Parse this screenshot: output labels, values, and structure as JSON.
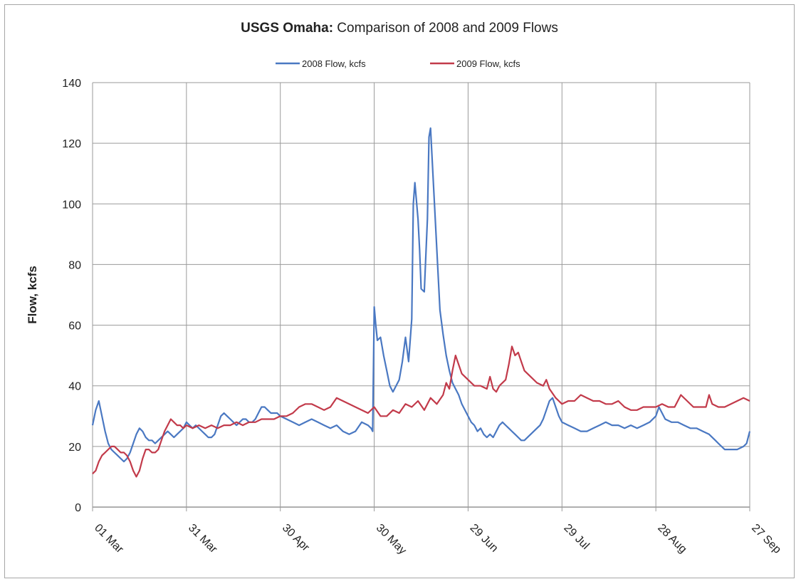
{
  "chart_data": {
    "type": "line",
    "title_bold": "USGS Omaha:",
    "title_rest": " Comparison of 2008 and 2009 Flows",
    "ylabel": "Flow, kcfs",
    "xlabel": "",
    "ylim": [
      0,
      140
    ],
    "yticks": [
      0,
      20,
      40,
      60,
      80,
      100,
      120,
      140
    ],
    "xlim": [
      0,
      210
    ],
    "xticks": [
      {
        "day": 0,
        "label": "01 Mar"
      },
      {
        "day": 30,
        "label": "31 Mar"
      },
      {
        "day": 60,
        "label": "30 Apr"
      },
      {
        "day": 90,
        "label": "30 May"
      },
      {
        "day": 120,
        "label": "29 Jun"
      },
      {
        "day": 150,
        "label": "29 Jul"
      },
      {
        "day": 180,
        "label": "28 Aug"
      },
      {
        "day": 210,
        "label": "27 Sep"
      }
    ],
    "grid": true,
    "legend_position": "top",
    "series": [
      {
        "name": "2008 Flow, kcfs",
        "color": "#4a78c2",
        "points": [
          [
            0,
            27
          ],
          [
            1,
            32
          ],
          [
            2,
            35
          ],
          [
            3,
            30
          ],
          [
            4,
            25
          ],
          [
            5,
            21
          ],
          [
            6,
            19
          ],
          [
            7,
            18
          ],
          [
            8,
            17
          ],
          [
            9,
            16
          ],
          [
            10,
            15
          ],
          [
            11,
            16
          ],
          [
            12,
            18
          ],
          [
            13,
            21
          ],
          [
            14,
            24
          ],
          [
            15,
            26
          ],
          [
            16,
            25
          ],
          [
            17,
            23
          ],
          [
            18,
            22
          ],
          [
            19,
            22
          ],
          [
            20,
            21
          ],
          [
            21,
            22
          ],
          [
            22,
            23
          ],
          [
            23,
            24
          ],
          [
            24,
            25
          ],
          [
            25,
            24
          ],
          [
            26,
            23
          ],
          [
            27,
            24
          ],
          [
            28,
            25
          ],
          [
            29,
            26
          ],
          [
            30,
            28
          ],
          [
            31,
            27
          ],
          [
            32,
            26
          ],
          [
            33,
            27
          ],
          [
            34,
            26
          ],
          [
            35,
            25
          ],
          [
            36,
            24
          ],
          [
            37,
            23
          ],
          [
            38,
            23
          ],
          [
            39,
            24
          ],
          [
            40,
            27
          ],
          [
            41,
            30
          ],
          [
            42,
            31
          ],
          [
            43,
            30
          ],
          [
            44,
            29
          ],
          [
            45,
            28
          ],
          [
            46,
            27
          ],
          [
            47,
            28
          ],
          [
            48,
            29
          ],
          [
            49,
            29
          ],
          [
            50,
            28
          ],
          [
            51,
            28
          ],
          [
            52,
            29
          ],
          [
            53,
            31
          ],
          [
            54,
            33
          ],
          [
            55,
            33
          ],
          [
            56,
            32
          ],
          [
            57,
            31
          ],
          [
            58,
            31
          ],
          [
            59,
            31
          ],
          [
            60,
            30
          ],
          [
            62,
            29
          ],
          [
            64,
            28
          ],
          [
            66,
            27
          ],
          [
            68,
            28
          ],
          [
            70,
            29
          ],
          [
            72,
            28
          ],
          [
            74,
            27
          ],
          [
            76,
            26
          ],
          [
            78,
            27
          ],
          [
            80,
            25
          ],
          [
            82,
            24
          ],
          [
            84,
            25
          ],
          [
            86,
            28
          ],
          [
            88,
            27
          ],
          [
            89,
            26
          ],
          [
            89.5,
            25
          ],
          [
            90,
            66
          ],
          [
            90.5,
            60
          ],
          [
            91,
            55
          ],
          [
            92,
            56
          ],
          [
            93,
            50
          ],
          [
            94,
            45
          ],
          [
            95,
            40
          ],
          [
            96,
            38
          ],
          [
            97,
            40
          ],
          [
            98,
            42
          ],
          [
            99,
            48
          ],
          [
            100,
            56
          ],
          [
            101,
            48
          ],
          [
            102,
            62
          ],
          [
            102.5,
            100
          ],
          [
            103,
            107
          ],
          [
            104,
            95
          ],
          [
            104.5,
            85
          ],
          [
            105,
            72
          ],
          [
            106,
            71
          ],
          [
            107,
            95
          ],
          [
            107.5,
            122
          ],
          [
            108,
            125
          ],
          [
            109,
            105
          ],
          [
            110,
            85
          ],
          [
            111,
            65
          ],
          [
            112,
            57
          ],
          [
            113,
            50
          ],
          [
            114,
            45
          ],
          [
            115,
            41
          ],
          [
            116,
            39
          ],
          [
            117,
            37
          ],
          [
            118,
            34
          ],
          [
            119,
            32
          ],
          [
            120,
            30
          ],
          [
            121,
            28
          ],
          [
            122,
            27
          ],
          [
            123,
            25
          ],
          [
            124,
            26
          ],
          [
            125,
            24
          ],
          [
            126,
            23
          ],
          [
            127,
            24
          ],
          [
            128,
            23
          ],
          [
            129,
            25
          ],
          [
            130,
            27
          ],
          [
            131,
            28
          ],
          [
            132,
            27
          ],
          [
            133,
            26
          ],
          [
            134,
            25
          ],
          [
            135,
            24
          ],
          [
            136,
            23
          ],
          [
            137,
            22
          ],
          [
            138,
            22
          ],
          [
            139,
            23
          ],
          [
            140,
            24
          ],
          [
            141,
            25
          ],
          [
            142,
            26
          ],
          [
            143,
            27
          ],
          [
            144,
            29
          ],
          [
            145,
            32
          ],
          [
            146,
            35
          ],
          [
            147,
            36
          ],
          [
            148,
            33
          ],
          [
            149,
            30
          ],
          [
            150,
            28
          ],
          [
            152,
            27
          ],
          [
            154,
            26
          ],
          [
            156,
            25
          ],
          [
            158,
            25
          ],
          [
            160,
            26
          ],
          [
            162,
            27
          ],
          [
            164,
            28
          ],
          [
            166,
            27
          ],
          [
            168,
            27
          ],
          [
            170,
            26
          ],
          [
            172,
            27
          ],
          [
            174,
            26
          ],
          [
            176,
            27
          ],
          [
            178,
            28
          ],
          [
            180,
            30
          ],
          [
            181,
            33
          ],
          [
            182,
            31
          ],
          [
            183,
            29
          ],
          [
            185,
            28
          ],
          [
            187,
            28
          ],
          [
            189,
            27
          ],
          [
            191,
            26
          ],
          [
            193,
            26
          ],
          [
            195,
            25
          ],
          [
            197,
            24
          ],
          [
            199,
            22
          ],
          [
            200,
            21
          ],
          [
            201,
            20
          ],
          [
            202,
            19
          ],
          [
            204,
            19
          ],
          [
            206,
            19
          ],
          [
            208,
            20
          ],
          [
            209,
            21
          ],
          [
            210,
            25
          ]
        ]
      },
      {
        "name": "2009 Flow, kcfs",
        "color": "#c23a4a",
        "points": [
          [
            0,
            11
          ],
          [
            1,
            12
          ],
          [
            2,
            15
          ],
          [
            3,
            17
          ],
          [
            4,
            18
          ],
          [
            5,
            19
          ],
          [
            6,
            20
          ],
          [
            7,
            20
          ],
          [
            8,
            19
          ],
          [
            9,
            18
          ],
          [
            10,
            18
          ],
          [
            11,
            17
          ],
          [
            12,
            15
          ],
          [
            13,
            12
          ],
          [
            14,
            10
          ],
          [
            15,
            12
          ],
          [
            16,
            16
          ],
          [
            17,
            19
          ],
          [
            18,
            19
          ],
          [
            19,
            18
          ],
          [
            20,
            18
          ],
          [
            21,
            19
          ],
          [
            22,
            22
          ],
          [
            23,
            25
          ],
          [
            24,
            27
          ],
          [
            25,
            29
          ],
          [
            26,
            28
          ],
          [
            27,
            27
          ],
          [
            28,
            27
          ],
          [
            29,
            26
          ],
          [
            30,
            27
          ],
          [
            32,
            26
          ],
          [
            34,
            27
          ],
          [
            36,
            26
          ],
          [
            38,
            27
          ],
          [
            40,
            26
          ],
          [
            42,
            27
          ],
          [
            44,
            27
          ],
          [
            46,
            28
          ],
          [
            48,
            27
          ],
          [
            50,
            28
          ],
          [
            52,
            28
          ],
          [
            54,
            29
          ],
          [
            56,
            29
          ],
          [
            58,
            29
          ],
          [
            60,
            30
          ],
          [
            62,
            30
          ],
          [
            64,
            31
          ],
          [
            66,
            33
          ],
          [
            68,
            34
          ],
          [
            70,
            34
          ],
          [
            72,
            33
          ],
          [
            74,
            32
          ],
          [
            76,
            33
          ],
          [
            78,
            36
          ],
          [
            80,
            35
          ],
          [
            82,
            34
          ],
          [
            84,
            33
          ],
          [
            86,
            32
          ],
          [
            88,
            31
          ],
          [
            90,
            33
          ],
          [
            92,
            30
          ],
          [
            94,
            30
          ],
          [
            96,
            32
          ],
          [
            98,
            31
          ],
          [
            100,
            34
          ],
          [
            102,
            33
          ],
          [
            104,
            35
          ],
          [
            106,
            32
          ],
          [
            108,
            36
          ],
          [
            110,
            34
          ],
          [
            112,
            37
          ],
          [
            113,
            41
          ],
          [
            114,
            39
          ],
          [
            115,
            45
          ],
          [
            116,
            50
          ],
          [
            117,
            47
          ],
          [
            118,
            44
          ],
          [
            120,
            42
          ],
          [
            122,
            40
          ],
          [
            124,
            40
          ],
          [
            126,
            39
          ],
          [
            127,
            43
          ],
          [
            128,
            39
          ],
          [
            129,
            38
          ],
          [
            130,
            40
          ],
          [
            132,
            42
          ],
          [
            133,
            47
          ],
          [
            134,
            53
          ],
          [
            135,
            50
          ],
          [
            136,
            51
          ],
          [
            137,
            48
          ],
          [
            138,
            45
          ],
          [
            140,
            43
          ],
          [
            142,
            41
          ],
          [
            144,
            40
          ],
          [
            145,
            42
          ],
          [
            146,
            39
          ],
          [
            148,
            36
          ],
          [
            150,
            34
          ],
          [
            152,
            35
          ],
          [
            154,
            35
          ],
          [
            156,
            37
          ],
          [
            158,
            36
          ],
          [
            160,
            35
          ],
          [
            162,
            35
          ],
          [
            164,
            34
          ],
          [
            166,
            34
          ],
          [
            168,
            35
          ],
          [
            170,
            33
          ],
          [
            172,
            32
          ],
          [
            174,
            32
          ],
          [
            176,
            33
          ],
          [
            178,
            33
          ],
          [
            180,
            33
          ],
          [
            182,
            34
          ],
          [
            184,
            33
          ],
          [
            186,
            33
          ],
          [
            188,
            37
          ],
          [
            190,
            35
          ],
          [
            192,
            33
          ],
          [
            194,
            33
          ],
          [
            196,
            33
          ],
          [
            197,
            37
          ],
          [
            198,
            34
          ],
          [
            200,
            33
          ],
          [
            202,
            33
          ],
          [
            204,
            34
          ],
          [
            206,
            35
          ],
          [
            208,
            36
          ],
          [
            210,
            35
          ]
        ]
      }
    ]
  }
}
